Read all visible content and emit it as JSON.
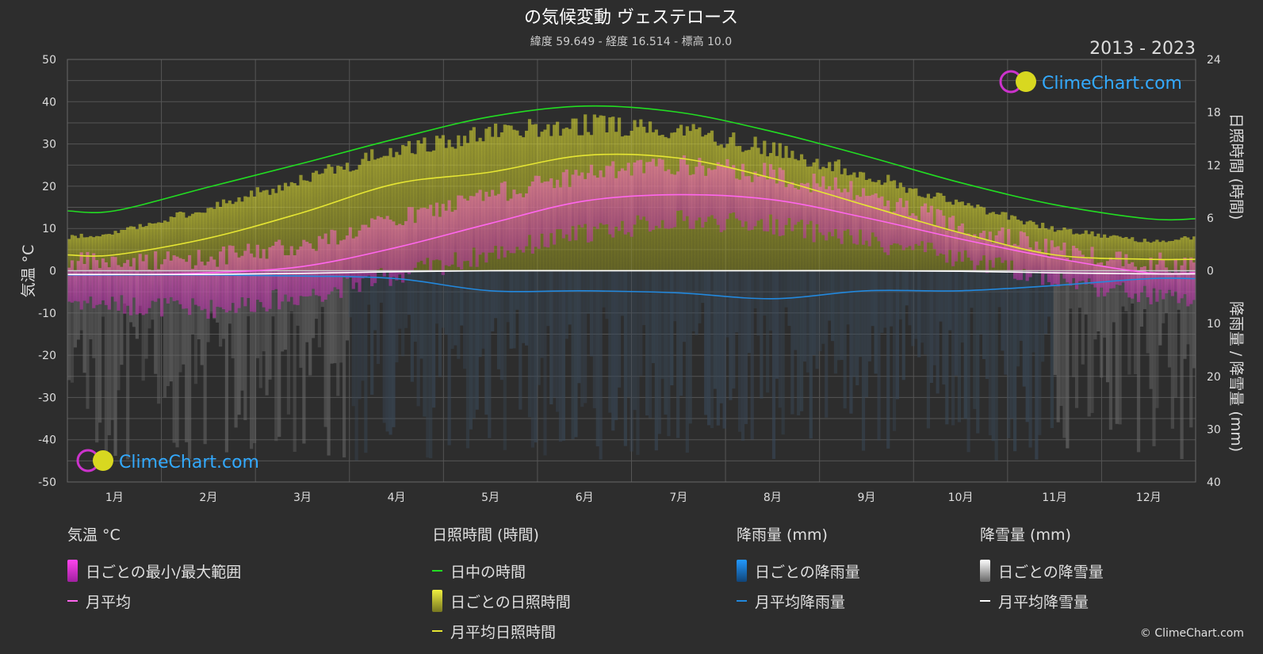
{
  "title": "の気候変動 ヴェステロース",
  "subtitle": "緯度 59.649 - 経度 16.514 - 標高 10.0",
  "year_range": "2013 - 2023",
  "logo_text": "ClimeChart.com",
  "copyright": "© ClimeChart.com",
  "colors": {
    "background": "#2d2d2d",
    "daylight": "#22dd22",
    "sunshine": "#e6e633",
    "temp_range": "#e040c0",
    "temp_avg": "#ff66ee",
    "rain": "#2288dd",
    "snow": "#ffffff"
  },
  "chart_data": {
    "type": "line",
    "months": [
      "1月",
      "2月",
      "3月",
      "4月",
      "5月",
      "6月",
      "7月",
      "8月",
      "9月",
      "10月",
      "11月",
      "12月"
    ],
    "y_left": {
      "label": "気温 °C",
      "min": -50,
      "max": 50,
      "ticks": [
        50,
        40,
        30,
        20,
        10,
        0,
        -10,
        -20,
        -30,
        -40,
        -50
      ]
    },
    "y_right_top": {
      "label": "日照時間 (時間)",
      "min": 0,
      "max": 24,
      "ticks": [
        24,
        18,
        12,
        6,
        0
      ]
    },
    "y_right_bottom": {
      "label": "降雨量 / 降雪量 (mm)",
      "min": 0,
      "max": 40,
      "ticks": [
        10,
        20,
        30,
        40
      ]
    },
    "series": [
      {
        "name": "日中の時間",
        "axis": "sunshine_hours",
        "values": [
          6.8,
          9.5,
          12.2,
          15.0,
          17.5,
          18.7,
          18.0,
          15.8,
          13.0,
          10.0,
          7.5,
          5.9
        ]
      },
      {
        "name": "月平均日照時間",
        "axis": "sunshine_hours",
        "values": [
          1.8,
          3.7,
          6.6,
          9.9,
          11.2,
          13.1,
          12.8,
          10.5,
          7.4,
          4.3,
          1.8,
          1.3
        ]
      },
      {
        "name": "月平均",
        "axis": "temperature_c",
        "values": [
          -1.0,
          -0.5,
          1.0,
          5.5,
          11.2,
          16.5,
          18.0,
          16.8,
          12.5,
          7.5,
          3.0,
          -0.5
        ]
      },
      {
        "name": "月平均降雨量",
        "axis": "precip_mm",
        "values": [
          0.8,
          0.8,
          1.0,
          1.5,
          3.8,
          3.8,
          4.2,
          5.3,
          3.8,
          3.8,
          2.8,
          1.5
        ]
      },
      {
        "name": "月平均降雪量",
        "axis": "precip_mm",
        "values": [
          0.7,
          0.7,
          0.5,
          0.2,
          0,
          0,
          0,
          0,
          0,
          0.1,
          0.4,
          0.6
        ]
      }
    ],
    "daily_bands": {
      "temp_max": [
        2,
        3,
        6,
        12,
        18,
        23,
        25,
        23,
        18,
        11,
        5,
        2
      ],
      "temp_min": [
        -8,
        -9,
        -6,
        -1,
        4,
        9,
        12,
        11,
        7,
        3,
        -2,
        -6
      ],
      "sunshine_max": [
        4.5,
        7.5,
        11.0,
        14.5,
        16.5,
        17.5,
        17.0,
        14.5,
        11.5,
        8.0,
        5.0,
        3.5
      ]
    }
  },
  "legend": {
    "temperature": {
      "title": "気温 °C",
      "range": "日ごとの最小/最大範囲",
      "avg": "月平均"
    },
    "sunshine": {
      "title": "日照時間 (時間)",
      "daylight": "日中の時間",
      "daily": "日ごとの日照時間",
      "avg": "月平均日照時間"
    },
    "rain": {
      "title": "降雨量 (mm)",
      "daily": "日ごとの降雨量",
      "avg": "月平均降雨量"
    },
    "snow": {
      "title": "降雪量 (mm)",
      "daily": "日ごとの降雪量",
      "avg": "月平均降雪量"
    }
  }
}
